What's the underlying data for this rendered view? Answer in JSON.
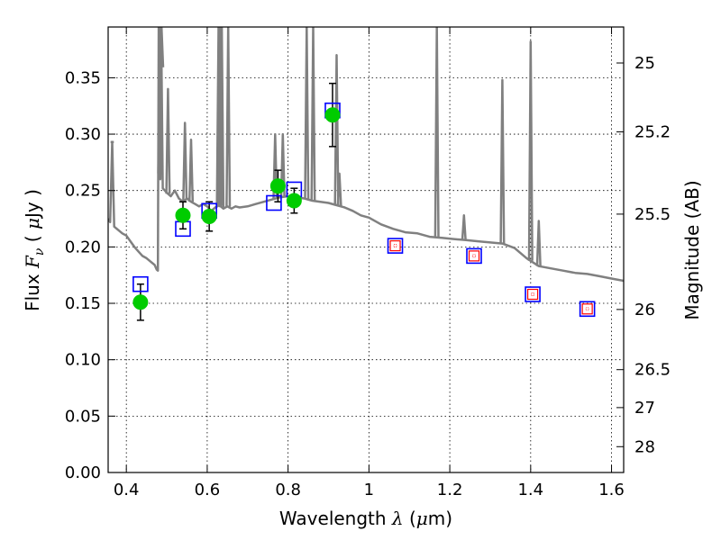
{
  "chart_data": {
    "type": "scatter",
    "xlabel": "Wavelength  λ (μm)",
    "ylabel": "Flux  Fν  ( μJy )",
    "y2label": "Magnitude (AB)",
    "xlim": [
      0.355,
      1.63
    ],
    "ylim": [
      0.0,
      0.395
    ],
    "grid": true,
    "x_ticks": [
      {
        "v": 0.4,
        "label": "0.4"
      },
      {
        "v": 0.6,
        "label": "0.6"
      },
      {
        "v": 0.8,
        "label": "0.8"
      },
      {
        "v": 1.0,
        "label": "1"
      },
      {
        "v": 1.2,
        "label": "1.2"
      },
      {
        "v": 1.4,
        "label": "1.4"
      },
      {
        "v": 1.6,
        "label": "1.6"
      }
    ],
    "y_ticks": [
      {
        "v": 0.0,
        "label": "0.00"
      },
      {
        "v": 0.05,
        "label": "0.05"
      },
      {
        "v": 0.1,
        "label": "0.10"
      },
      {
        "v": 0.15,
        "label": "0.15"
      },
      {
        "v": 0.2,
        "label": "0.20"
      },
      {
        "v": 0.25,
        "label": "0.25"
      },
      {
        "v": 0.3,
        "label": "0.30"
      },
      {
        "v": 0.35,
        "label": "0.35"
      }
    ],
    "y2_ticks": [
      {
        "mag": 25,
        "label": "25"
      },
      {
        "mag": 25.2,
        "label": "25.2"
      },
      {
        "mag": 25.5,
        "label": "25.5"
      },
      {
        "mag": 26,
        "label": "26"
      },
      {
        "mag": 26.5,
        "label": "26.5"
      },
      {
        "mag": 27,
        "label": "27"
      },
      {
        "mag": 28,
        "label": "28"
      }
    ],
    "colors": {
      "model": "#808080",
      "observed": "#00cc00",
      "model_box": "#0000ff",
      "nir_box_inner": "#ff0000",
      "errorbar": "#000000"
    },
    "series": [
      {
        "kind": "line",
        "x": [
          0.355,
          0.36,
          0.365,
          0.37,
          0.38,
          0.39,
          0.4,
          0.41,
          0.42,
          0.43,
          0.44,
          0.45,
          0.46,
          0.47,
          0.475,
          0.478,
          0.48,
          0.482,
          0.484,
          0.486,
          0.49,
          0.5,
          0.51,
          0.52,
          0.53,
          0.54,
          0.55,
          0.56,
          0.57,
          0.58,
          0.59,
          0.6,
          0.61,
          0.62,
          0.63,
          0.64,
          0.65,
          0.66,
          0.67,
          0.68,
          0.7,
          0.72,
          0.74,
          0.76,
          0.78,
          0.8,
          0.82,
          0.84,
          0.86,
          0.88,
          0.9,
          0.92,
          0.94,
          0.96,
          0.98,
          1.0,
          1.03,
          1.06,
          1.09,
          1.12,
          1.15,
          1.18,
          1.21,
          1.24,
          1.27,
          1.3,
          1.33,
          1.36,
          1.39,
          1.42,
          1.45,
          1.48,
          1.51,
          1.54,
          1.57,
          1.6,
          1.63
        ],
        "y": [
          0.225,
          0.222,
          0.293,
          0.218,
          0.215,
          0.212,
          0.21,
          0.205,
          0.2,
          0.196,
          0.192,
          0.19,
          0.187,
          0.184,
          0.18,
          0.179,
          0.395,
          0.27,
          0.26,
          0.395,
          0.252,
          0.248,
          0.245,
          0.25,
          0.243,
          0.24,
          0.243,
          0.24,
          0.238,
          0.236,
          0.238,
          0.236,
          0.232,
          0.235,
          0.237,
          0.234,
          0.236,
          0.234,
          0.236,
          0.235,
          0.236,
          0.238,
          0.24,
          0.242,
          0.244,
          0.245,
          0.244,
          0.243,
          0.241,
          0.24,
          0.239,
          0.237,
          0.235,
          0.232,
          0.228,
          0.226,
          0.22,
          0.216,
          0.213,
          0.212,
          0.209,
          0.208,
          0.207,
          0.206,
          0.205,
          0.204,
          0.203,
          0.199,
          0.19,
          0.183,
          0.181,
          0.179,
          0.177,
          0.176,
          0.174,
          0.172,
          0.17
        ],
        "emission_lines": [
          {
            "x": 0.365,
            "peak": 0.293
          },
          {
            "x": 0.483,
            "peak": 0.395
          },
          {
            "x": 0.487,
            "peak": 0.395
          },
          {
            "x": 0.503,
            "peak": 0.34
          },
          {
            "x": 0.545,
            "peak": 0.31
          },
          {
            "x": 0.56,
            "peak": 0.295
          },
          {
            "x": 0.628,
            "peak": 0.395
          },
          {
            "x": 0.632,
            "peak": 0.395
          },
          {
            "x": 0.636,
            "peak": 0.395
          },
          {
            "x": 0.652,
            "peak": 0.395
          },
          {
            "x": 0.768,
            "peak": 0.3
          },
          {
            "x": 0.787,
            "peak": 0.3
          },
          {
            "x": 0.846,
            "peak": 0.395
          },
          {
            "x": 0.862,
            "peak": 0.395
          },
          {
            "x": 0.92,
            "peak": 0.37
          },
          {
            "x": 0.927,
            "peak": 0.265
          },
          {
            "x": 1.168,
            "peak": 0.395
          },
          {
            "x": 1.235,
            "peak": 0.228
          },
          {
            "x": 1.33,
            "peak": 0.348
          },
          {
            "x": 1.4,
            "peak": 0.382
          },
          {
            "x": 1.42,
            "peak": 0.223
          }
        ]
      },
      {
        "kind": "observed",
        "x": [
          0.435,
          0.54,
          0.605,
          0.775,
          0.815,
          0.91
        ],
        "y": [
          0.151,
          0.228,
          0.227,
          0.254,
          0.241,
          0.317
        ],
        "yerr": [
          0.016,
          0.012,
          0.013,
          0.014,
          0.011,
          0.028
        ]
      },
      {
        "kind": "model_boxes",
        "x": [
          0.435,
          0.54,
          0.605,
          0.765,
          0.815,
          0.91,
          1.065,
          1.26,
          1.405,
          1.54
        ],
        "y": [
          0.167,
          0.216,
          0.232,
          0.239,
          0.251,
          0.321,
          0.201,
          0.192,
          0.158,
          0.145
        ]
      },
      {
        "kind": "nir_inner_boxes",
        "x": [
          1.065,
          1.26,
          1.405,
          1.54
        ],
        "y": [
          0.201,
          0.192,
          0.158,
          0.145
        ]
      }
    ]
  }
}
